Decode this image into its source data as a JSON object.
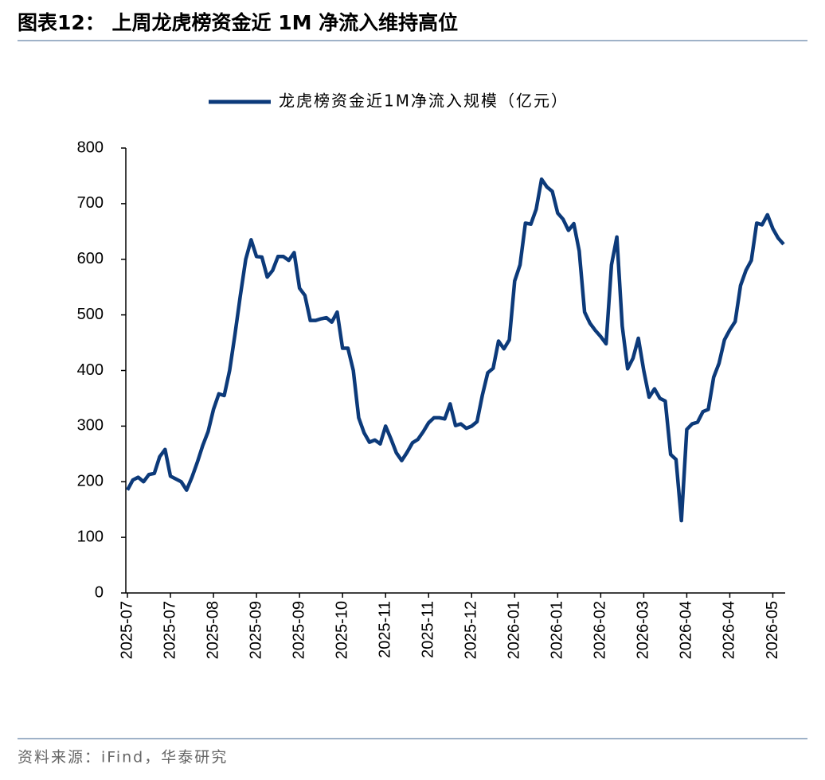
{
  "chart_data": {
    "type": "line",
    "title": "图表12：  上周龙虎榜资金近 1M 净流入维持高位",
    "source": "资料来源：iFind，华泰研究",
    "categories": [
      "2025-07",
      null,
      null,
      null,
      null,
      null,
      null,
      null,
      "2025-07",
      null,
      null,
      null,
      null,
      null,
      null,
      null,
      "2025-08",
      null,
      null,
      null,
      null,
      null,
      null,
      null,
      "2025-09",
      null,
      null,
      null,
      null,
      null,
      null,
      null,
      "2025-09",
      null,
      null,
      null,
      null,
      null,
      null,
      null,
      "2025-10",
      null,
      null,
      null,
      null,
      null,
      null,
      null,
      "2025-11",
      null,
      null,
      null,
      null,
      null,
      null,
      null,
      "2025-11",
      null,
      null,
      null,
      null,
      null,
      null,
      null,
      "2025-12",
      null,
      null,
      null,
      null,
      null,
      null,
      null,
      "2026-01",
      null,
      null,
      null,
      null,
      null,
      null,
      null,
      "2026-01",
      null,
      null,
      null,
      null,
      null,
      null,
      null,
      "2026-02",
      null,
      null,
      null,
      null,
      null,
      null,
      null,
      "2026-03",
      null,
      null,
      null,
      null,
      null,
      null,
      null,
      "2026-04",
      null,
      null,
      null,
      null,
      null,
      null,
      null,
      "2026-04",
      null,
      null,
      null,
      null,
      null,
      null,
      null,
      "2026-05",
      null,
      null
    ],
    "series": [
      {
        "name": "龙虎榜资金近1M净流入规模（亿元）",
        "color": "#0c3a7a",
        "values": [
          185,
          203,
          208,
          200,
          213,
          215,
          245,
          258,
          210,
          205,
          200,
          185,
          208,
          235,
          265,
          290,
          330,
          358,
          355,
          400,
          465,
          535,
          600,
          635,
          605,
          604,
          568,
          580,
          605,
          605,
          598,
          612,
          548,
          535,
          490,
          490,
          493,
          495,
          487,
          505,
          440,
          440,
          400,
          315,
          288,
          271,
          275,
          268,
          300,
          277,
          252,
          238,
          253,
          270,
          276,
          290,
          306,
          315,
          315,
          313,
          340,
          301,
          304,
          296,
          300,
          308,
          356,
          396,
          404,
          453,
          439,
          455,
          561,
          590,
          665,
          663,
          690,
          744,
          730,
          722,
          683,
          672,
          652,
          664,
          615,
          505,
          485,
          472,
          461,
          448,
          590,
          640,
          480,
          403,
          422,
          458,
          400,
          352,
          367,
          350,
          345,
          249,
          240,
          130,
          294,
          304,
          307,
          326,
          330,
          388,
          413,
          455,
          473,
          488,
          553,
          580,
          598,
          665,
          662,
          680,
          655,
          638,
          627
        ]
      }
    ],
    "ylim": [
      0,
      800
    ],
    "yticks": [
      0,
      100,
      200,
      300,
      400,
      500,
      600,
      700,
      800
    ],
    "legend": "top"
  }
}
